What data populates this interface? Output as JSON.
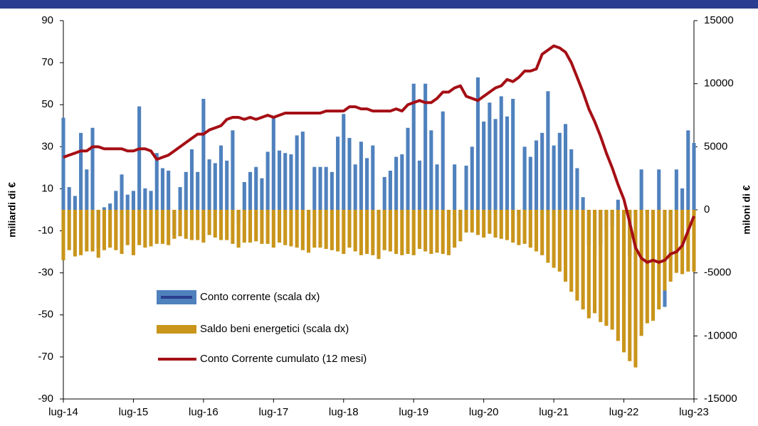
{
  "chart_data": {
    "type": "bar-line",
    "y_label": "miliardi di €",
    "y2_label": "miloni di €",
    "categories": [
      "lug-14",
      null,
      null,
      null,
      null,
      null,
      null,
      null,
      null,
      null,
      null,
      null,
      "lug-15",
      null,
      null,
      null,
      null,
      null,
      null,
      null,
      null,
      null,
      null,
      null,
      "lug-16",
      null,
      null,
      null,
      null,
      null,
      null,
      null,
      null,
      null,
      null,
      null,
      "lug-17",
      null,
      null,
      null,
      null,
      null,
      null,
      null,
      null,
      null,
      null,
      null,
      "lug-18",
      null,
      null,
      null,
      null,
      null,
      null,
      null,
      null,
      null,
      null,
      null,
      "lug-19",
      null,
      null,
      null,
      null,
      null,
      null,
      null,
      null,
      null,
      null,
      null,
      "lug-20",
      null,
      null,
      null,
      null,
      null,
      null,
      null,
      null,
      null,
      null,
      null,
      "lug-21",
      null,
      null,
      null,
      null,
      null,
      null,
      null,
      null,
      null,
      null,
      null,
      "lug-22",
      null,
      null,
      null,
      null,
      null,
      null,
      null,
      null,
      null,
      null,
      null,
      "lug-23"
    ],
    "ylim": [
      -90,
      90
    ],
    "yticks": [
      -90,
      -70,
      -50,
      -30,
      -10,
      10,
      30,
      50,
      70,
      90
    ],
    "y2lim": [
      -15000,
      15000
    ],
    "y2ticks": [
      -15000,
      -10000,
      -5000,
      0,
      5000,
      10000,
      15000
    ],
    "series": [
      {
        "name": "Conto corrente (scala dx)",
        "type": "bar",
        "axis": "y2",
        "color": "#4f81bd",
        "values": [
          7300,
          1800,
          1100,
          6100,
          3200,
          6500,
          -3000,
          200,
          500,
          1500,
          2800,
          1200,
          1500,
          8200,
          1700,
          1500,
          4500,
          3300,
          3100,
          -2000,
          1800,
          3000,
          4800,
          3000,
          8800,
          4000,
          3700,
          5100,
          3900,
          6300,
          -1000,
          2200,
          3000,
          3400,
          2500,
          4600,
          7300,
          4700,
          4500,
          4400,
          5900,
          6200,
          -1300,
          3400,
          3400,
          3400,
          3000,
          5800,
          7600,
          5700,
          3600,
          5400,
          4100,
          5100,
          -500,
          2600,
          3100,
          4200,
          4400,
          6500,
          10000,
          3900,
          10000,
          6300,
          3600,
          7800,
          -1600,
          3600,
          -800,
          3500,
          5000,
          10500,
          7000,
          8500,
          7200,
          9000,
          7400,
          8800,
          -500,
          5000,
          4200,
          5500,
          6100,
          9400,
          5100,
          6100,
          6800,
          4800,
          3300,
          1000,
          -2800,
          -3500,
          -2800,
          -1500,
          -1300,
          800,
          -7000,
          -3700,
          -500,
          3200,
          -300,
          0,
          3200,
          -7700,
          -4000,
          3200,
          1700,
          6300,
          5300
        ]
      },
      {
        "name": "Saldo beni energetici (scala dx)",
        "type": "bar",
        "axis": "y2",
        "color": "#c9951b",
        "values": [
          -4000,
          -3200,
          -3700,
          -3600,
          -3300,
          -3300,
          -3800,
          -3200,
          -3000,
          -3200,
          -3500,
          -2800,
          -3600,
          -2800,
          -3000,
          -2900,
          -2700,
          -2700,
          -2800,
          -2300,
          -2100,
          -2300,
          -2400,
          -2400,
          -2600,
          -2000,
          -2200,
          -2400,
          -2400,
          -2700,
          -3000,
          -2600,
          -2600,
          -2500,
          -2700,
          -2700,
          -3000,
          -2600,
          -2800,
          -2900,
          -3000,
          -3200,
          -3400,
          -3000,
          -3000,
          -3100,
          -3200,
          -3300,
          -3500,
          -3000,
          -3300,
          -3600,
          -3500,
          -3600,
          -3900,
          -3200,
          -3300,
          -3500,
          -3600,
          -3500,
          -3600,
          -3100,
          -3300,
          -3500,
          -3400,
          -3500,
          -3600,
          -3000,
          -2500,
          -1800,
          -1800,
          -2000,
          -2200,
          -1900,
          -2200,
          -2300,
          -2400,
          -2600,
          -2800,
          -2700,
          -3000,
          -3300,
          -3600,
          -4200,
          -4600,
          -4900,
          -5700,
          -6500,
          -7200,
          -7900,
          -8600,
          -8200,
          -8900,
          -9200,
          -9500,
          -10400,
          -11300,
          -12000,
          -12500,
          -10000,
          -9000,
          -8800,
          -7900,
          -6400,
          -5700,
          -5000,
          -5100,
          -4900,
          -4900
        ]
      },
      {
        "name": "Conto Corrente cumulato (12 mesi)",
        "type": "line",
        "axis": "y",
        "color": "#a50f15",
        "values": [
          25,
          26,
          27,
          28,
          28,
          30,
          30,
          29,
          29,
          29,
          29,
          28,
          28,
          29,
          29,
          28,
          24,
          25,
          26,
          28,
          30,
          32,
          34,
          36,
          36,
          38,
          39,
          40,
          43,
          44,
          44,
          43,
          44,
          43,
          44,
          45,
          44,
          45,
          46,
          46,
          46,
          46,
          46,
          46,
          46,
          47,
          47,
          47,
          47,
          49,
          49,
          48,
          48,
          47,
          47,
          47,
          47,
          48,
          47,
          50,
          51,
          52,
          51,
          51,
          53,
          56,
          56,
          58,
          59,
          54,
          53,
          52,
          54,
          56,
          58,
          59,
          62,
          61,
          63,
          66,
          66,
          67,
          74,
          76,
          78,
          77,
          75,
          70,
          63,
          56,
          48,
          42,
          35,
          27,
          20,
          12,
          5,
          -6,
          -18,
          -23,
          -25,
          -24,
          -25,
          -24,
          -21,
          -20,
          -17,
          -10,
          -3
        ]
      }
    ]
  }
}
